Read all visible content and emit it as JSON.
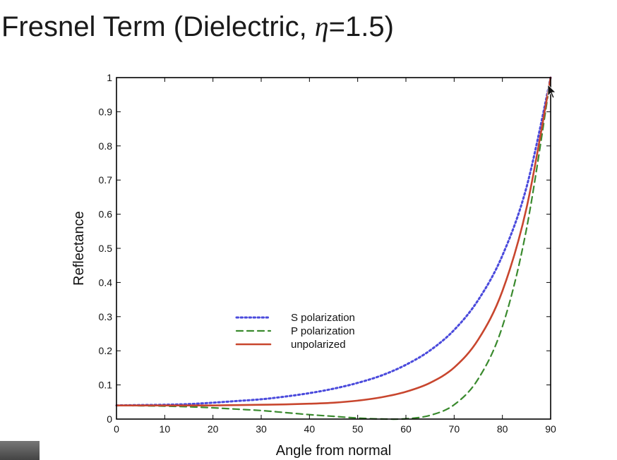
{
  "slide": {
    "title_prefix": "Fresnel Term (Dielectric, ",
    "title_eta": "η",
    "title_suffix": "=1.5)"
  },
  "chart_data": {
    "type": "line",
    "title": "",
    "xlabel": "Angle from normal",
    "ylabel": "Reflectance",
    "xlim": [
      0,
      90
    ],
    "ylim": [
      0,
      1
    ],
    "xticks": [
      0,
      10,
      20,
      30,
      40,
      50,
      60,
      70,
      80,
      90
    ],
    "yticks": [
      0,
      0.1,
      0.2,
      0.3,
      0.4,
      0.5,
      0.6,
      0.7,
      0.8,
      0.9,
      1
    ],
    "ytick_labels": [
      "0",
      "0.1",
      "0.2",
      "0.3",
      "0.4",
      "0.5",
      "0.6",
      "0.7",
      "0.8",
      "0.9",
      "1"
    ],
    "legend_position": "center-left",
    "grid": false,
    "x": [
      0,
      5,
      10,
      15,
      20,
      25,
      30,
      35,
      40,
      45,
      50,
      55,
      60,
      65,
      70,
      75,
      80,
      85,
      90
    ],
    "series": [
      {
        "name": "S polarization",
        "style": "dotted",
        "color": "#4a4adc",
        "values": [
          0.04,
          0.041,
          0.042,
          0.044,
          0.048,
          0.053,
          0.058,
          0.066,
          0.076,
          0.089,
          0.106,
          0.128,
          0.159,
          0.201,
          0.261,
          0.349,
          0.479,
          0.679,
          1.0
        ]
      },
      {
        "name": "P polarization",
        "style": "dashed",
        "color": "#3a8a2e",
        "values": [
          0.04,
          0.039,
          0.038,
          0.036,
          0.033,
          0.029,
          0.025,
          0.019,
          0.013,
          0.008,
          0.003,
          0.0002,
          0.001,
          0.011,
          0.042,
          0.118,
          0.271,
          0.557,
          1.0
        ]
      },
      {
        "name": "unpolarized",
        "style": "solid",
        "color": "#c8462e",
        "values": [
          0.04,
          0.04,
          0.04,
          0.04,
          0.04,
          0.041,
          0.042,
          0.043,
          0.045,
          0.048,
          0.054,
          0.064,
          0.08,
          0.106,
          0.151,
          0.233,
          0.375,
          0.618,
          1.0
        ]
      }
    ]
  }
}
